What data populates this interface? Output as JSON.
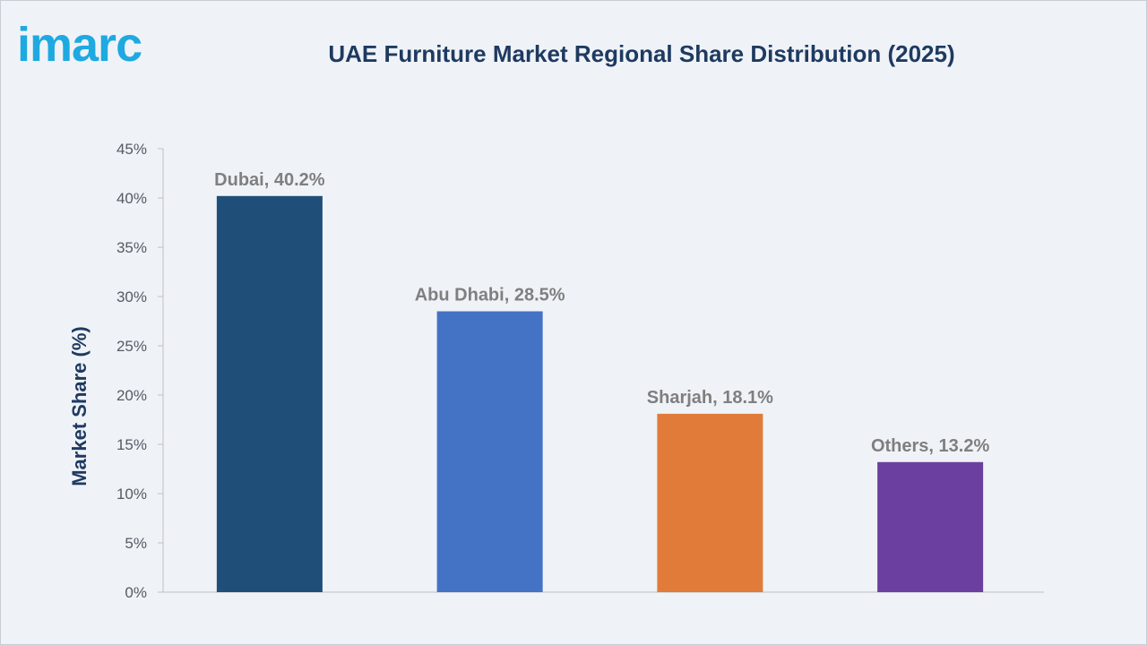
{
  "brand": {
    "logo_text": "imarc",
    "logo_color": "#1fa9e1"
  },
  "chart_data": {
    "type": "bar",
    "title": "UAE Furniture Market Regional Share Distribution (2025)",
    "xlabel": "",
    "ylabel": "Market Share (%)",
    "categories": [
      "Dubai",
      "Abu Dhabi",
      "Sharjah",
      "Others"
    ],
    "values": [
      40.2,
      28.5,
      18.1,
      13.2
    ],
    "data_labels": [
      "Dubai, 40.2%",
      "Abu Dhabi, 28.5%",
      "Sharjah, 18.1%",
      "Others, 13.2%"
    ],
    "colors": [
      "#1f4e79",
      "#4472c4",
      "#e07b39",
      "#6b3fa0"
    ],
    "ylim": [
      0,
      45
    ],
    "yticks": [
      0,
      5,
      10,
      15,
      20,
      25,
      30,
      35,
      40,
      45
    ],
    "ytick_labels": [
      "0%",
      "5%",
      "10%",
      "15%",
      "20%",
      "25%",
      "30%",
      "35%",
      "40%",
      "45%"
    ],
    "grid": false,
    "legend": "none"
  }
}
